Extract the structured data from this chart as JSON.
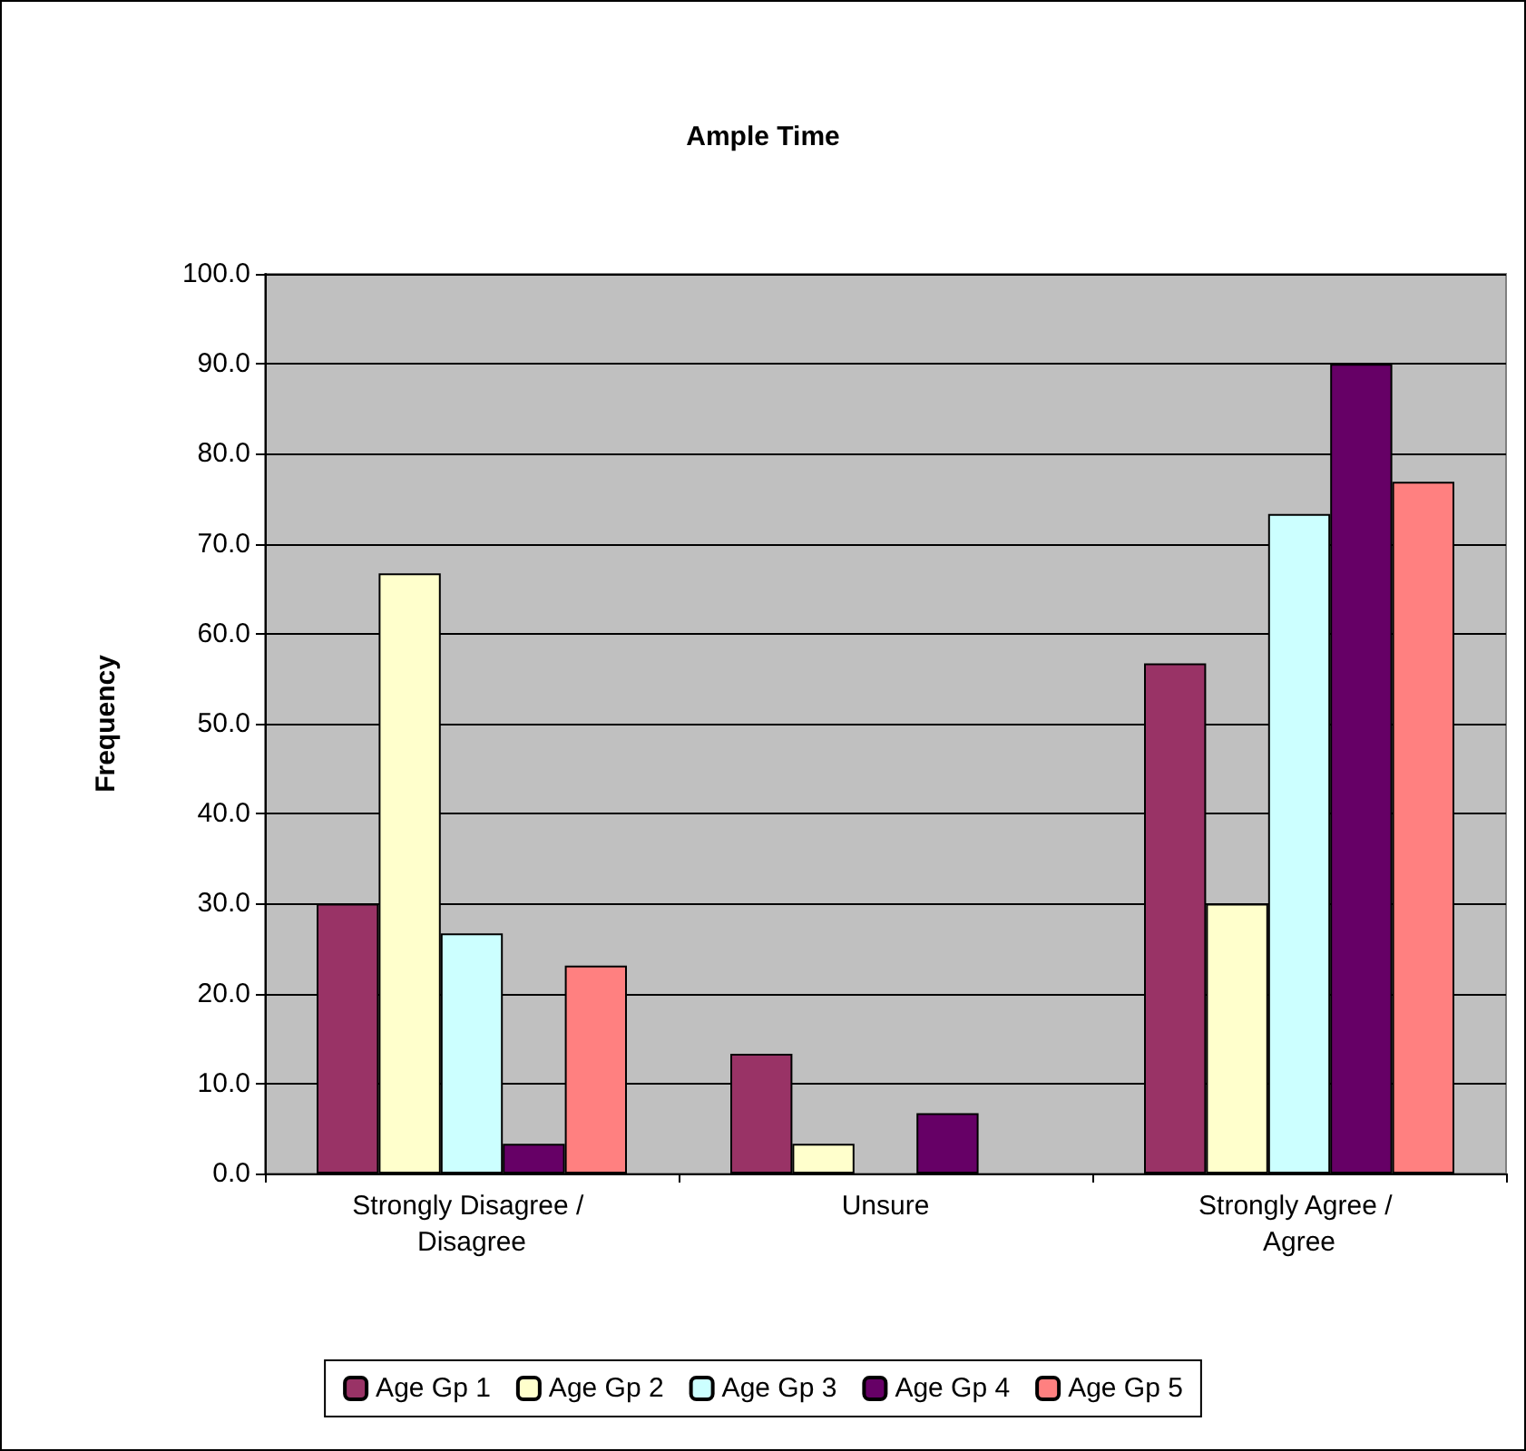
{
  "chart_data": {
    "type": "bar",
    "title": "Ample Time",
    "ylabel": "Frequency",
    "categories": [
      "Strongly Disagree / Disagree",
      "Unsure",
      "Strongly Agree / Agree"
    ],
    "series": [
      {
        "name": "Age Gp 1",
        "color": "#993366",
        "values": [
          30.0,
          13.3,
          56.7
        ]
      },
      {
        "name": "Age Gp 2",
        "color": "#ffffcc",
        "values": [
          66.7,
          3.3,
          30.0
        ]
      },
      {
        "name": "Age Gp 3",
        "color": "#ccffff",
        "values": [
          26.7,
          0,
          73.3
        ]
      },
      {
        "name": "Age Gp 4",
        "color": "#660066",
        "values": [
          3.3,
          6.7,
          90.0
        ]
      },
      {
        "name": "Age Gp 5",
        "color": "#ff8080",
        "values": [
          23.1,
          0,
          76.9
        ]
      }
    ],
    "ylim": [
      0,
      100
    ],
    "yticks": [
      {
        "value": 0,
        "label": "0.0"
      },
      {
        "value": 10,
        "label": "10.0"
      },
      {
        "value": 20,
        "label": "20.0"
      },
      {
        "value": 30,
        "label": "30.0"
      },
      {
        "value": 40,
        "label": "40.0"
      },
      {
        "value": 50,
        "label": "50.0"
      },
      {
        "value": 60,
        "label": "60.0"
      },
      {
        "value": 70,
        "label": "70.0"
      },
      {
        "value": 80,
        "label": "80.0"
      },
      {
        "value": 90,
        "label": "90.0"
      },
      {
        "value": 100,
        "label": "100.0"
      }
    ],
    "grid": "y",
    "legend": "bottom"
  }
}
